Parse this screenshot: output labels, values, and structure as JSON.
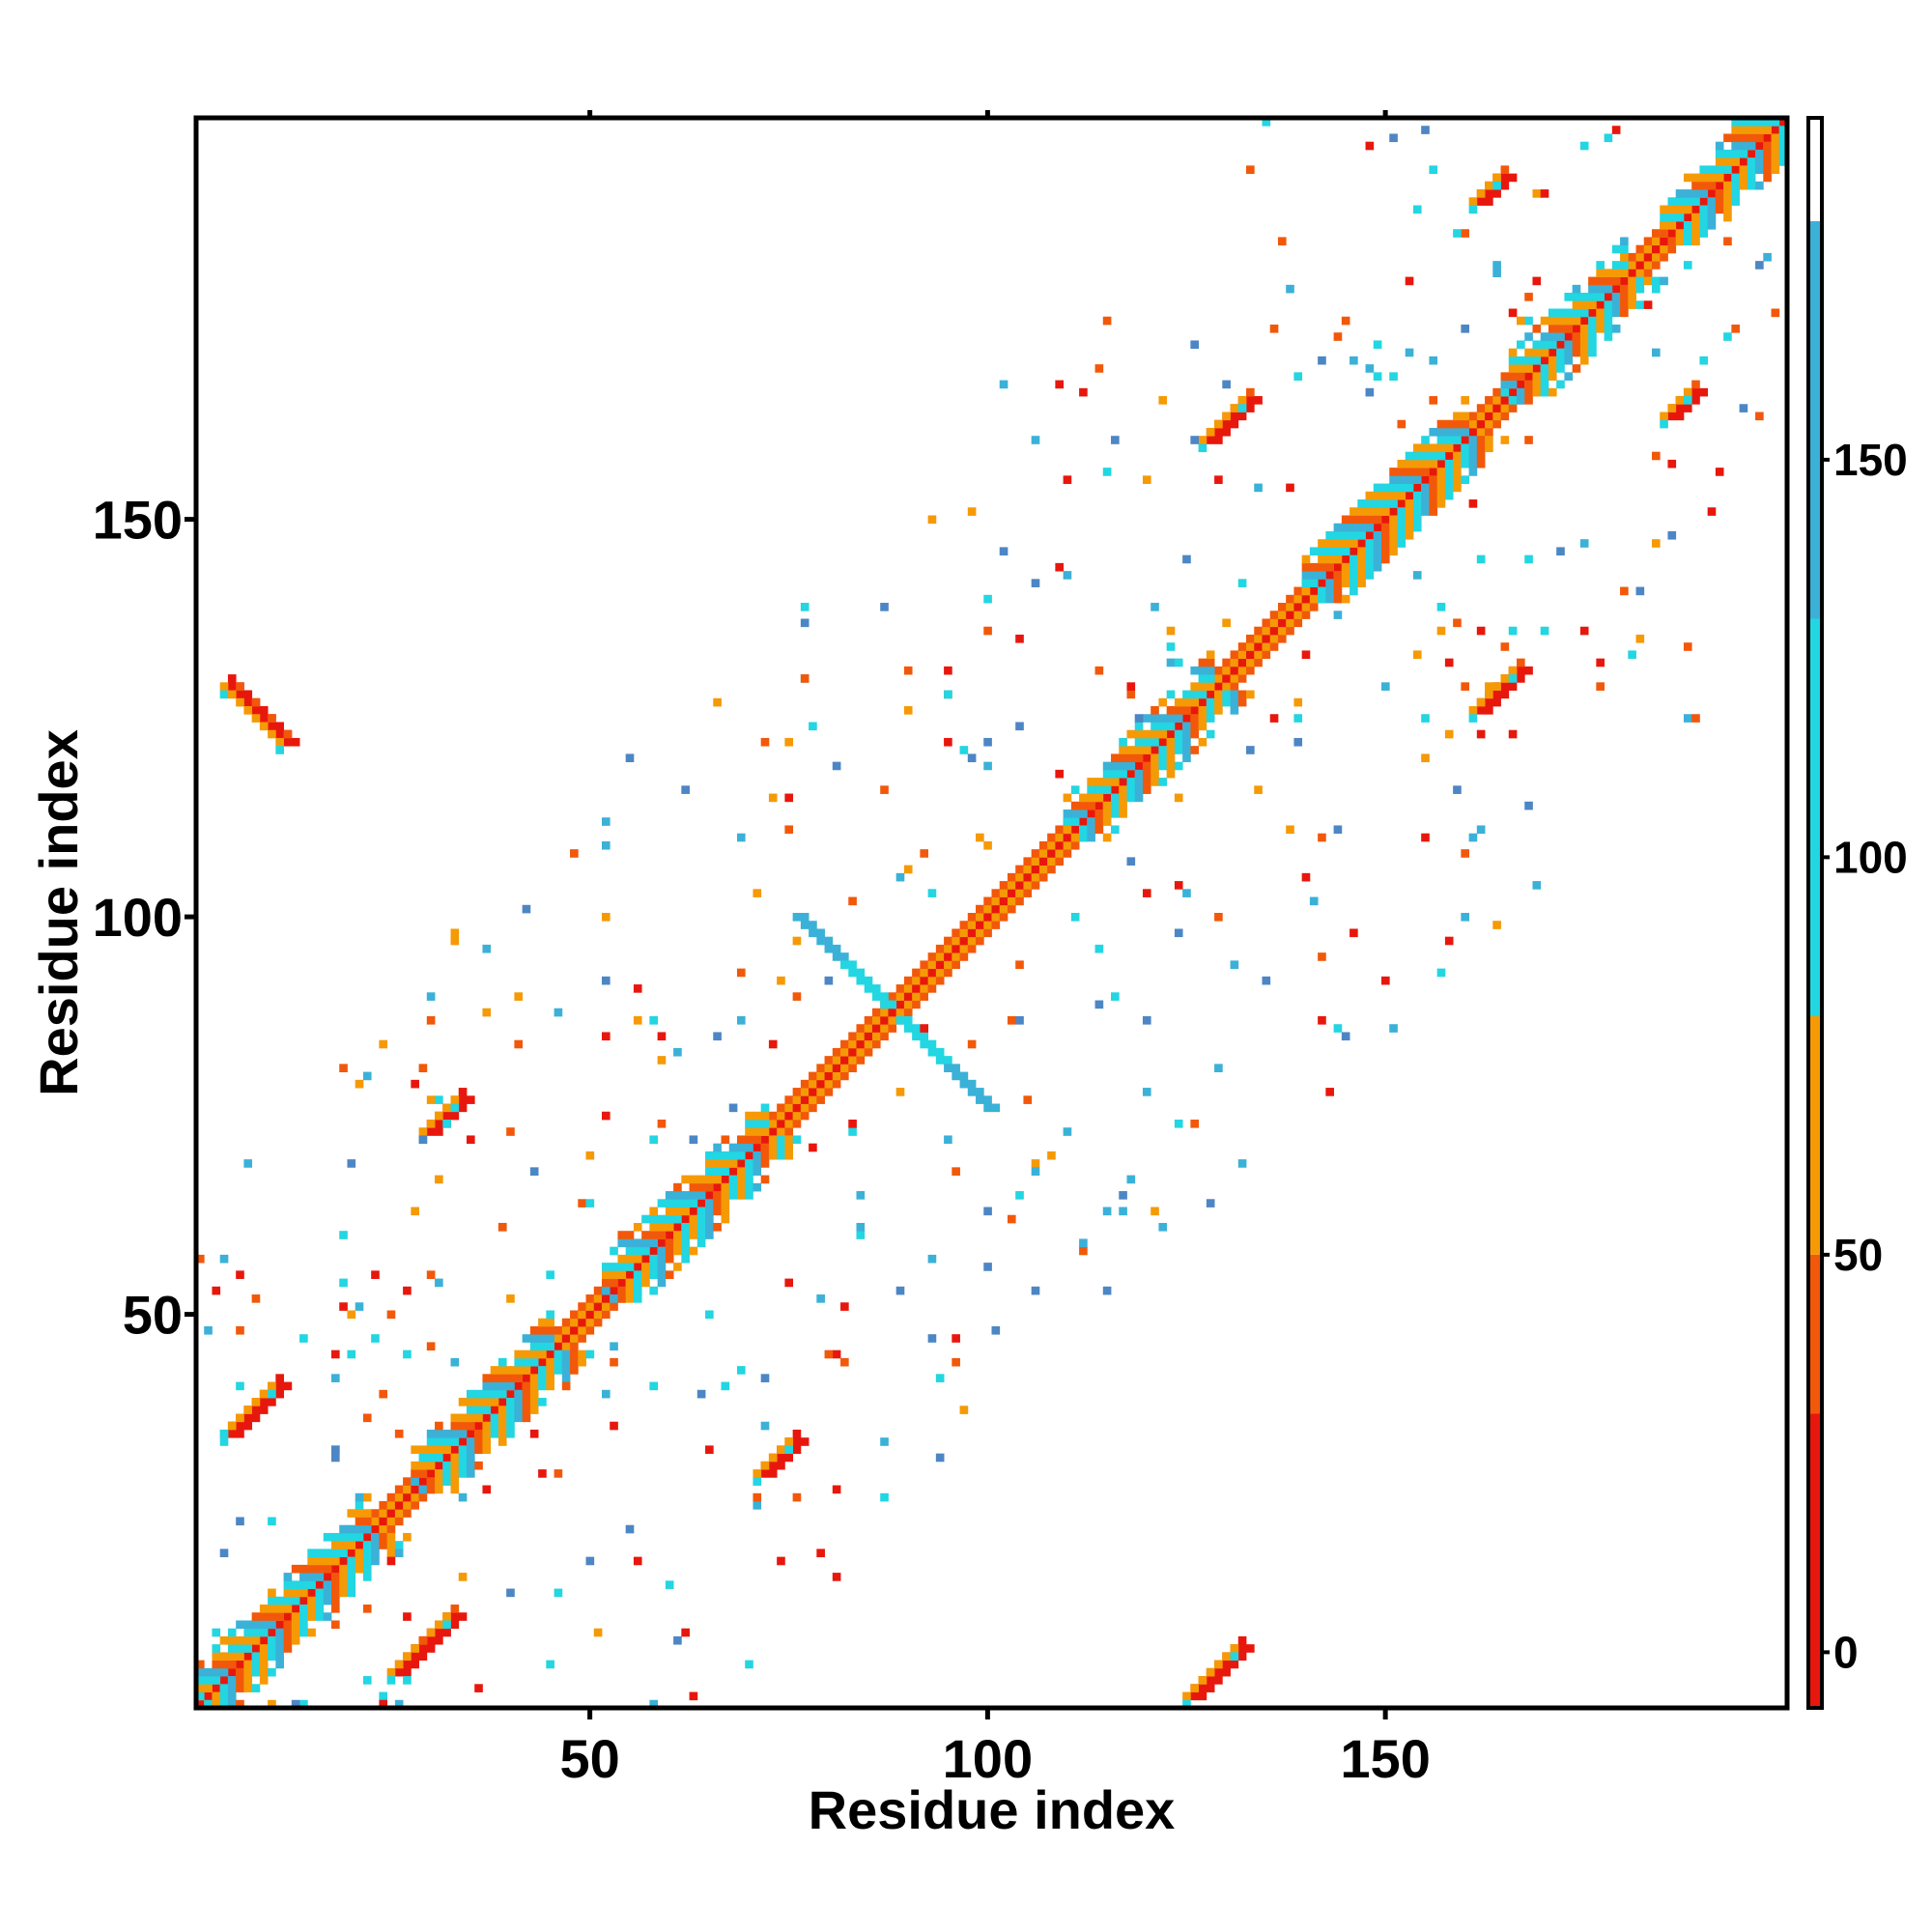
{
  "chart_data": {
    "type": "heatmap",
    "xlabel": "Residue index",
    "ylabel": "Residue index",
    "xlim": [
      1,
      200
    ],
    "ylim": [
      1,
      200
    ],
    "x_ticks": [
      50,
      100,
      150
    ],
    "y_ticks": [
      50,
      100,
      150
    ],
    "colorbar": {
      "ticks": [
        0,
        50,
        100,
        150
      ],
      "range": [
        -7,
        193
      ],
      "bands": [
        {
          "from": -7,
          "to": 30,
          "color": "#e8170d"
        },
        {
          "from": 30,
          "to": 50,
          "color": "#f2580a"
        },
        {
          "from": 50,
          "to": 80,
          "color": "#f59a05"
        },
        {
          "from": 80,
          "to": 130,
          "color": "#22d6e2"
        },
        {
          "from": 130,
          "to": 180,
          "color": "#3bb1d8"
        },
        {
          "from": 180,
          "to": 193,
          "color": "#ffffff"
        }
      ]
    },
    "colors": {
      "red": "#e8170d",
      "red_orange": "#f2580a",
      "orange": "#f59a05",
      "cyan": "#22d6e2",
      "light_blue": "#3bb1d8",
      "steel_blue": "#4d86c4"
    },
    "patterns": {
      "diagonal": {
        "from": 1,
        "to": 200
      },
      "helix_bands": [
        [
          1,
          22
        ],
        [
          28,
          45
        ],
        [
          52,
          72
        ],
        [
          110,
          128
        ],
        [
          140,
          160
        ],
        [
          165,
          180
        ],
        [
          185,
          200
        ]
      ],
      "cross": {
        "center": 88,
        "half_length": 12
      },
      "sheet_pairs": [
        {
          "i_start": 5,
          "j_start": 129,
          "length": 8,
          "dir": -1
        },
        {
          "i_start": 26,
          "j_start": 5,
          "length": 8,
          "dir": 1
        },
        {
          "i_start": 72,
          "j_start": 30,
          "length": 5,
          "dir": 1
        },
        {
          "i_start": 126,
          "j_start": 2,
          "length": 7,
          "dir": 1
        },
        {
          "i_start": 128,
          "j_start": 160,
          "length": 6,
          "dir": 1
        },
        {
          "i_start": 162,
          "j_start": 126,
          "length": 6,
          "dir": 1
        },
        {
          "i_start": 186,
          "j_start": 163,
          "length": 4,
          "dir": 1
        },
        {
          "i_start": 162,
          "j_start": 190,
          "length": 4,
          "dir": 1
        },
        {
          "i_start": 30,
          "j_start": 73,
          "length": 5,
          "dir": 1
        },
        {
          "i_start": 5,
          "j_start": 35,
          "length": 7,
          "dir": 1
        }
      ],
      "scatter_seed": 7,
      "scatter_count": 520
    }
  }
}
